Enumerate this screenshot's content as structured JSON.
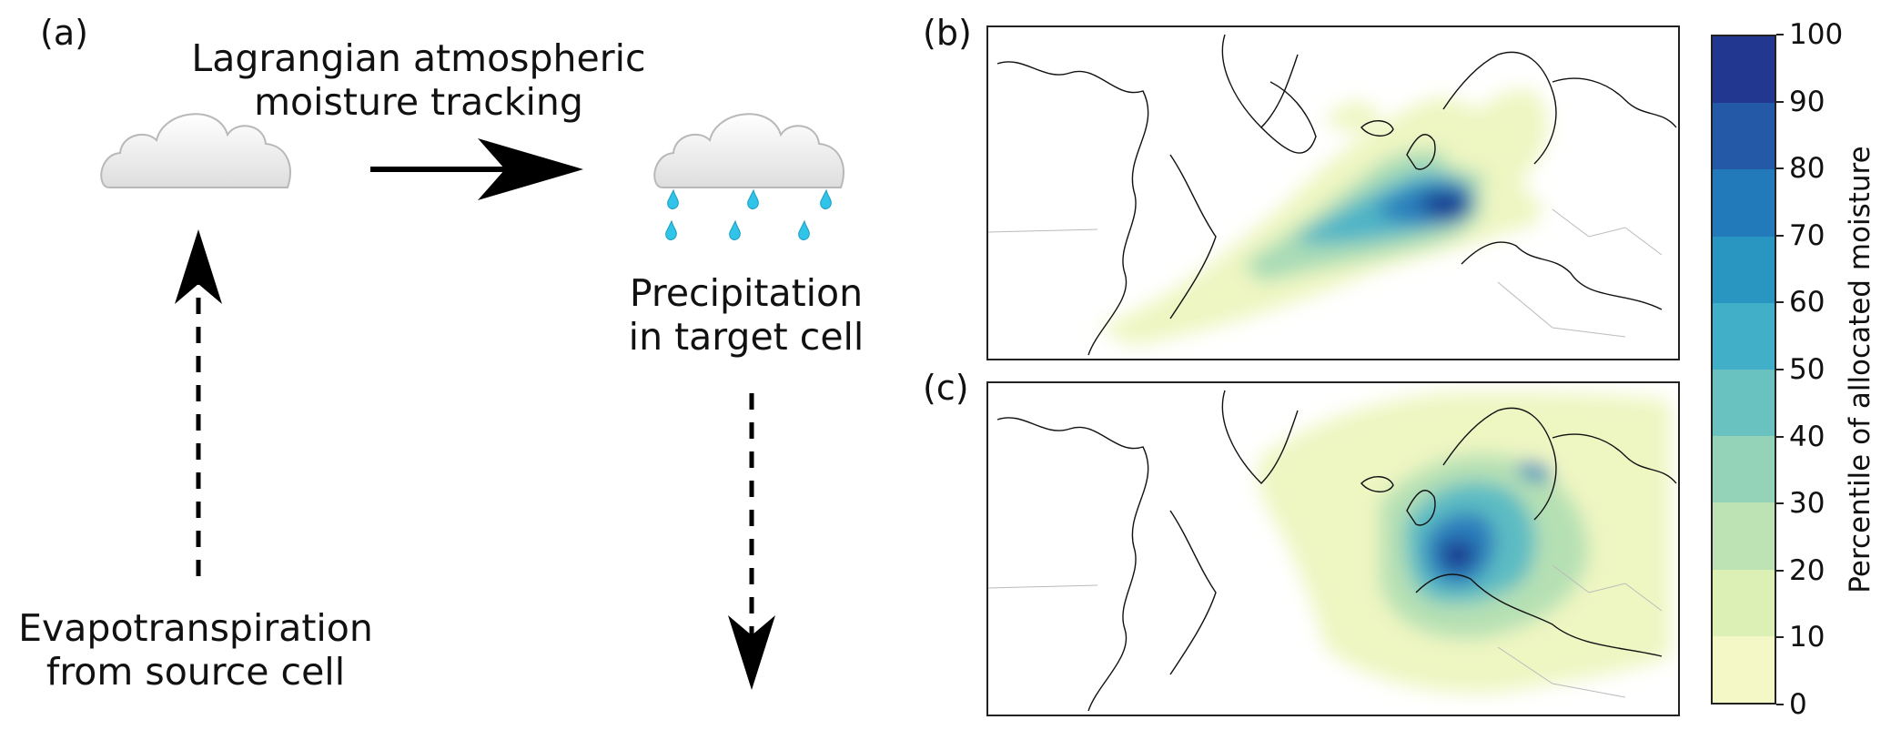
{
  "panel_a": {
    "label": "(a)",
    "top_text_line1": "Lagrangian atmospheric",
    "top_text_line2": "moisture tracking",
    "right_text_line1": "Precipitation",
    "right_text_line2": "in target cell",
    "bottom_text_line1": "Evapotranspiration",
    "bottom_text_line2": "from source cell"
  },
  "panel_b": {
    "label": "(b)"
  },
  "panel_c": {
    "label": "(c)"
  },
  "colorbar": {
    "label": "Percentile of allocated moisture",
    "ticks": [
      "0",
      "10",
      "20",
      "30",
      "40",
      "50",
      "60",
      "70",
      "80",
      "90",
      "100"
    ],
    "colors": [
      "#f3f8c6",
      "#dcefb4",
      "#bde3b5",
      "#94d3b8",
      "#6ac2c0",
      "#41afc7",
      "#2996c1",
      "#227abb",
      "#2359a6",
      "#22378f",
      "#0f1d5c"
    ]
  },
  "colors": {
    "arrow": "#000000",
    "raindrop": "#2fc4e8",
    "cloud_fill": "#ececec",
    "cloud_stroke": "#b8b8b8"
  }
}
